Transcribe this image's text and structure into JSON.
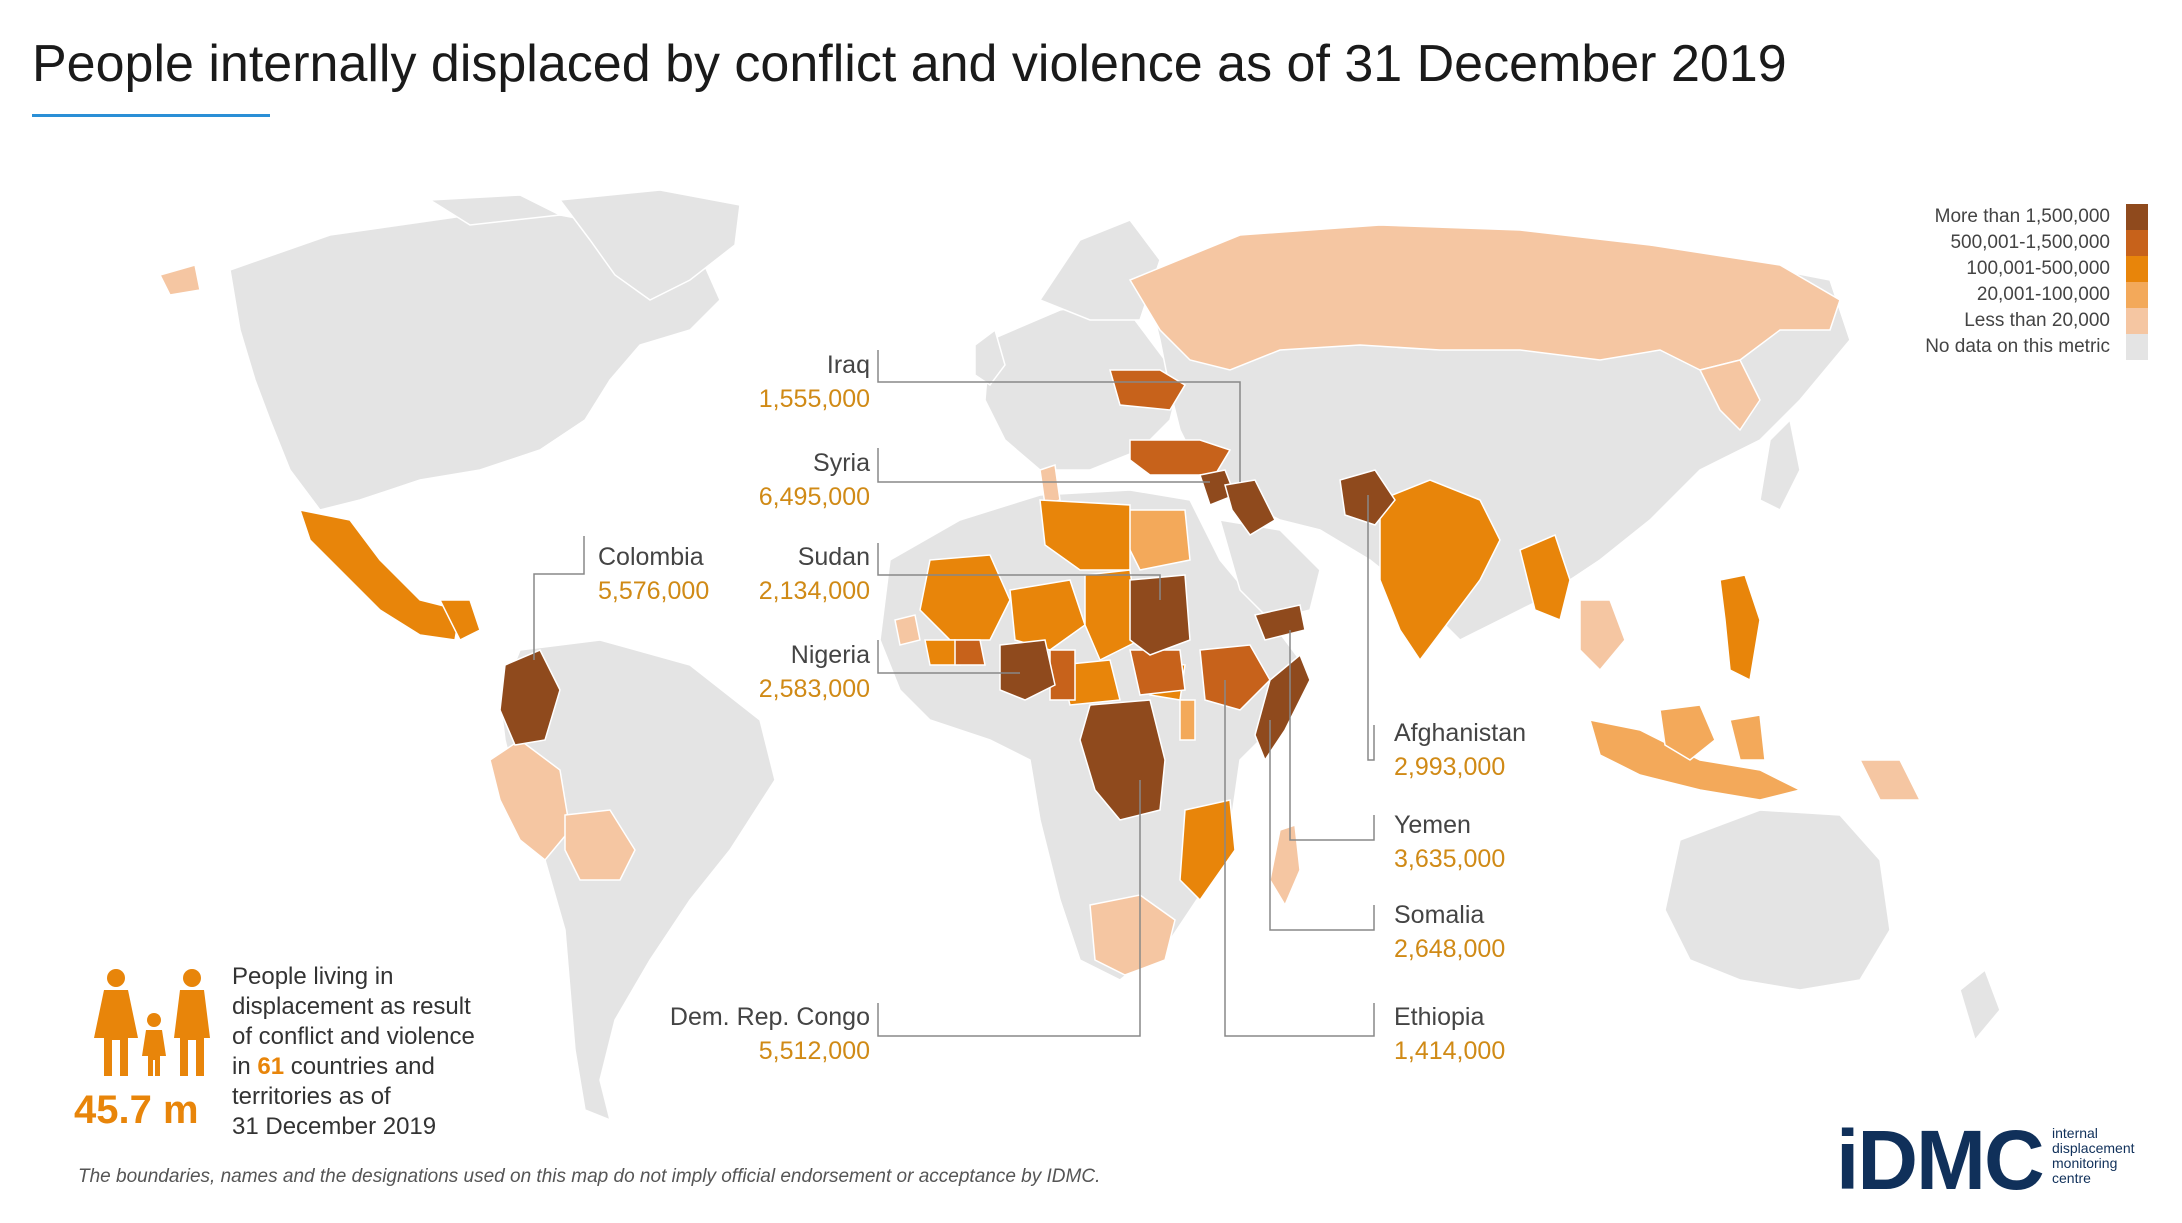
{
  "title": "People internally displaced by conflict and violence as of 31 December 2019",
  "colors": {
    "no_data": "#e4e4e4",
    "lt20k": "#f5c6a2",
    "c20_100k": "#f3a95a",
    "c100_500k": "#e8850a",
    "c500k_1_5m": "#c7621b",
    "gt1_5m": "#8f4a1d",
    "accent_blue": "#2a8fd6",
    "value_text": "#d08a16",
    "logo": "#10305a"
  },
  "legend": [
    {
      "label": "More than 1,500,000",
      "color": "#8f4a1d"
    },
    {
      "label": "500,001-1,500,000",
      "color": "#c7621b"
    },
    {
      "label": "100,001-500,000",
      "color": "#e8850a"
    },
    {
      "label": "20,001-100,000",
      "color": "#f3a95a"
    },
    {
      "label": "Less than 20,000",
      "color": "#f5c6a2"
    },
    {
      "label": "No data on this metric",
      "color": "#e4e4e4"
    }
  ],
  "callouts": {
    "iraq": {
      "name": "Iraq",
      "value": "1,555,000"
    },
    "syria": {
      "name": "Syria",
      "value": "6,495,000"
    },
    "sudan": {
      "name": "Sudan",
      "value": "2,134,000"
    },
    "nigeria": {
      "name": "Nigeria",
      "value": "2,583,000"
    },
    "colombia": {
      "name": "Colombia",
      "value": "5,576,000"
    },
    "drc": {
      "name": "Dem. Rep. Congo",
      "value": "5,512,000"
    },
    "afghanistan": {
      "name": "Afghanistan",
      "value": "2,993,000"
    },
    "yemen": {
      "name": "Yemen",
      "value": "3,635,000"
    },
    "somalia": {
      "name": "Somalia",
      "value": "2,648,000"
    },
    "ethiopia": {
      "name": "Ethiopia",
      "value": "1,414,000"
    }
  },
  "stat": {
    "line1": "People living in",
    "line2": "displacement as result",
    "line3": "of conflict and violence",
    "line4_pre": "in ",
    "line4_num": "61",
    "line4_post": " countries and",
    "line5": "territories as of",
    "line6": "31 December 2019",
    "big": "45.7 m"
  },
  "disclaimer": "The boundaries, names and the designations used on this map do not imply official endorsement or acceptance by IDMC.",
  "logo": {
    "word": "iDMC",
    "sub1": "internal",
    "sub2": "displacement",
    "sub3": "monitoring",
    "sub4": "centre"
  }
}
